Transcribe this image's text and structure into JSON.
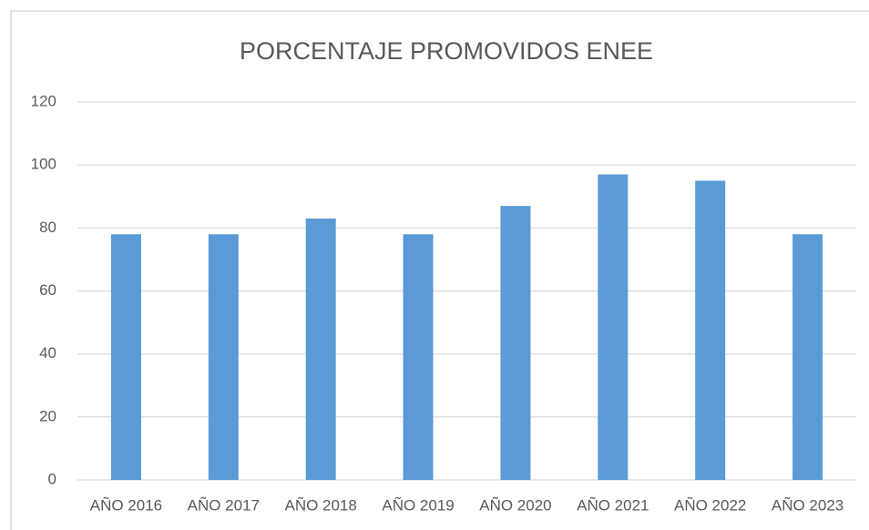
{
  "chart_data": {
    "type": "bar",
    "title": "PORCENTAJE PROMOVIDOS ENEE",
    "categories": [
      "AÑO 2016",
      "AÑO 2017",
      "AÑO 2018",
      "AÑO 2019",
      "AÑO 2020",
      "AÑO 2021",
      "AÑO 2022",
      "AÑO 2023"
    ],
    "values": [
      78,
      78,
      83,
      78,
      87,
      97,
      95,
      78
    ],
    "color": "#5b9bd5",
    "ylim": [
      0,
      120
    ],
    "yticks": [
      0,
      20,
      40,
      60,
      80,
      100,
      120
    ],
    "grid": true
  }
}
